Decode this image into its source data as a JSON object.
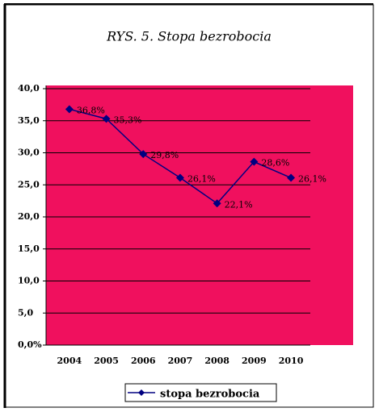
{
  "chart_data": {
    "type": "line",
    "title": "RYS. 5. Stopa bezrobocia",
    "categories": [
      "2004",
      "2005",
      "2006",
      "2007",
      "2008",
      "2009",
      "2010"
    ],
    "series": [
      {
        "name": "stopa bezrobocia",
        "color": "#000080",
        "values": [
          36.8,
          35.3,
          29.8,
          26.1,
          22.1,
          28.6,
          26.1
        ],
        "value_labels": [
          "36,8%",
          "35,3%",
          "29,8%",
          "26,1%",
          "22,1%",
          "28,6%",
          "26,1%"
        ]
      }
    ],
    "ylim": [
      0,
      40
    ],
    "yticks": [
      {
        "value": 0,
        "label": "0,0%"
      },
      {
        "value": 5,
        "label": "5,0"
      },
      {
        "value": 10,
        "label": "10,0"
      },
      {
        "value": 15,
        "label": "15,0"
      },
      {
        "value": 20,
        "label": "20,0"
      },
      {
        "value": 25,
        "label": "25,0"
      },
      {
        "value": 30,
        "label": "30,0"
      },
      {
        "value": 35,
        "label": "35,0"
      },
      {
        "value": 40,
        "label": "40,0"
      }
    ],
    "grid": true,
    "background": "#f0105e",
    "legend": "bottom"
  }
}
